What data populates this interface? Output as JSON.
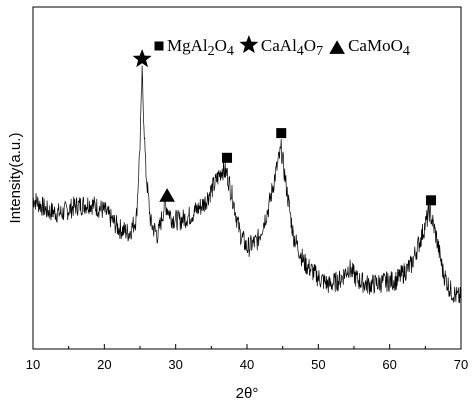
{
  "chart_data": {
    "type": "line",
    "xlabel": "2θ°",
    "ylabel": "Intensity(a.u.)",
    "xlim": [
      10,
      70
    ],
    "x_ticks": [
      10,
      20,
      30,
      40,
      50,
      60,
      70
    ],
    "y_ticks_shown": false,
    "grid": false,
    "line_color": "#000000",
    "series": [
      {
        "name": "",
        "x": [
          10,
          12,
          14,
          16,
          18,
          20,
          22,
          23.5,
          24.5,
          25.0,
          25.3,
          25.8,
          26.5,
          27.5,
          28.5,
          29.5,
          30.5,
          32,
          34,
          35.5,
          36.5,
          37.2,
          38,
          39,
          40,
          41.5,
          43,
          44,
          44.8,
          45.5,
          46.5,
          48,
          50,
          51.5,
          53,
          54.3,
          55.5,
          57,
          59,
          61,
          63,
          64.5,
          65.6,
          66.5,
          67.5,
          68.5,
          69.5,
          70
        ],
        "y": [
          0.5,
          0.45,
          0.44,
          0.47,
          0.48,
          0.45,
          0.38,
          0.36,
          0.42,
          0.72,
          1.0,
          0.62,
          0.4,
          0.35,
          0.48,
          0.42,
          0.41,
          0.43,
          0.48,
          0.56,
          0.62,
          0.6,
          0.5,
          0.36,
          0.3,
          0.33,
          0.46,
          0.6,
          0.7,
          0.55,
          0.35,
          0.24,
          0.18,
          0.15,
          0.17,
          0.22,
          0.17,
          0.15,
          0.16,
          0.17,
          0.23,
          0.35,
          0.45,
          0.35,
          0.2,
          0.13,
          0.1,
          0.1
        ]
      }
    ],
    "legend": {
      "placement": "top-right",
      "entries": [
        {
          "marker": "square",
          "formula": [
            "MgAl",
            "2",
            "O",
            "4"
          ]
        },
        {
          "marker": "star",
          "formula": [
            "CaAl",
            "4",
            "O",
            "7"
          ]
        },
        {
          "marker": "triangle",
          "formula": [
            "CaMoO",
            "4",
            "",
            ""
          ]
        }
      ]
    },
    "peak_markers": [
      {
        "marker": "star",
        "x": 25.3
      },
      {
        "marker": "triangle",
        "x": 28.8
      },
      {
        "marker": "square",
        "x": 37.2
      },
      {
        "marker": "square",
        "x": 44.8
      },
      {
        "marker": "square",
        "x": 65.8
      }
    ]
  }
}
